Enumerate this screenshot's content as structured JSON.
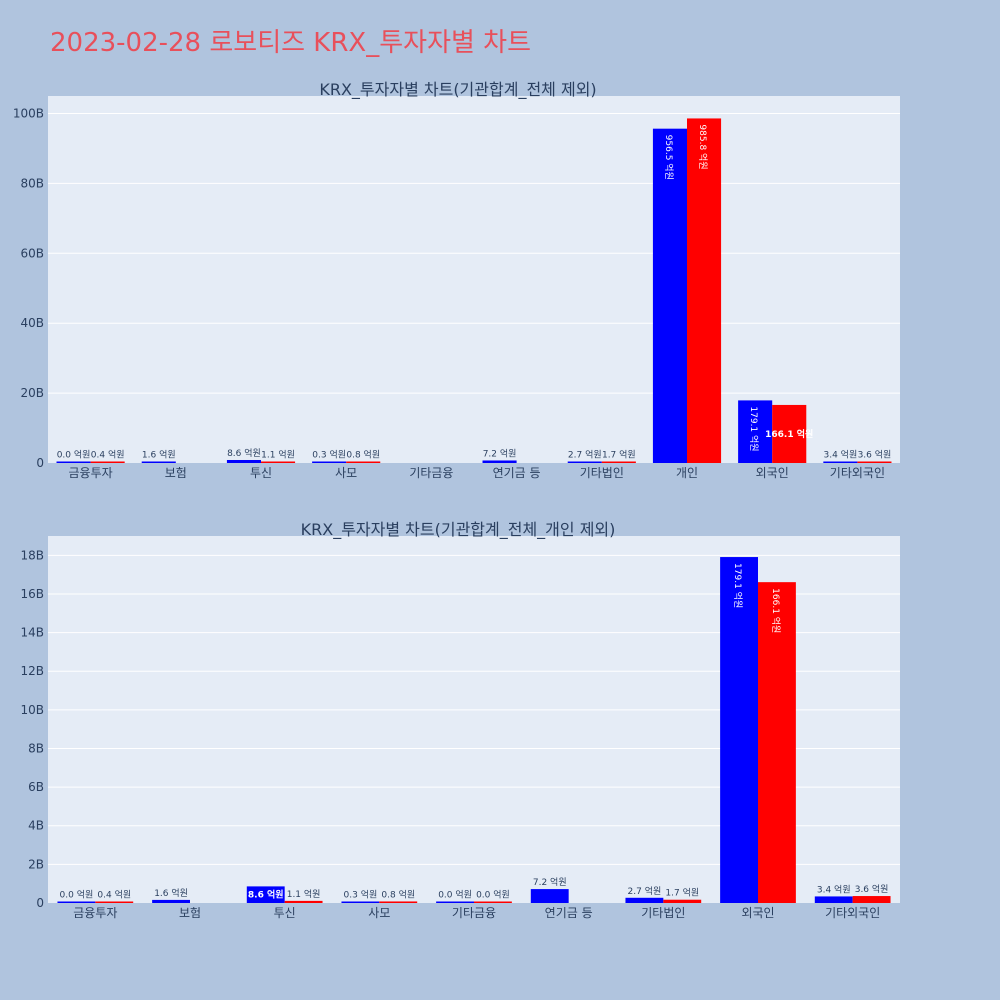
{
  "title": "2023-02-28 로보티즈 KRX_투자자별 차트",
  "colors": {
    "background": "#b0c4de",
    "plot_bg": "#e5ecf6",
    "series_a": "#0000ff",
    "series_b": "#ff0000",
    "title": "#e8505b",
    "text": "#2a3f5f"
  },
  "chart_data": [
    {
      "type": "bar",
      "title": "KRX_투자자별 차트(기관합계_전체 제외)",
      "categories": [
        "금융투자",
        "보험",
        "투신",
        "사모",
        "기타금융",
        "연기금 등",
        "기타법인",
        "개인",
        "외국인",
        "기타외국인"
      ],
      "ylim": [
        0,
        105
      ],
      "y_unit_scale": "B",
      "yticks": [
        "0",
        "20B",
        "40B",
        "60B",
        "80B",
        "100B"
      ],
      "ytick_values": [
        0,
        20,
        40,
        60,
        80,
        100
      ],
      "grid": true,
      "series": [
        {
          "values": [
            0.0,
            0.16,
            0.86,
            0.03,
            null,
            0.72,
            0.27,
            95.65,
            17.91,
            0.34
          ],
          "labels": [
            "0.0 억원",
            "1.6 억원",
            "8.6 억원",
            "0.3 억원",
            "",
            "7.2 억원",
            "2.7 억원",
            "956.5 억원",
            "179.1 억원",
            "3.4 억원"
          ]
        },
        {
          "values": [
            0.04,
            null,
            0.11,
            0.08,
            null,
            null,
            0.17,
            98.58,
            16.61,
            0.36
          ],
          "labels": [
            "0.4 억원",
            "",
            "1.1 억원",
            "0.8 억원",
            "",
            "",
            "1.7 억원",
            "985.8 억원",
            "166.1 억원",
            "3.6 억원"
          ]
        }
      ]
    },
    {
      "type": "bar",
      "title": "KRX_투자자별 차트(기관합계_전체_개인 제외)",
      "categories": [
        "금융투자",
        "보험",
        "투신",
        "사모",
        "기타금융",
        "연기금 등",
        "기타법인",
        "외국인",
        "기타외국인"
      ],
      "ylim": [
        0,
        19
      ],
      "y_unit_scale": "B",
      "yticks": [
        "0",
        "2B",
        "4B",
        "6B",
        "8B",
        "10B",
        "12B",
        "14B",
        "16B",
        "18B"
      ],
      "ytick_values": [
        0,
        2,
        4,
        6,
        8,
        10,
        12,
        14,
        16,
        18
      ],
      "grid": true,
      "series": [
        {
          "values": [
            0.0,
            0.16,
            0.86,
            0.03,
            0.0,
            0.72,
            0.27,
            17.91,
            0.34
          ],
          "labels": [
            "0.0 억원",
            "1.6 억원",
            "8.6 억원",
            "0.3 억원",
            "0.0 억원",
            "7.2 억원",
            "2.7 억원",
            "179.1 억원",
            "3.4 억원"
          ]
        },
        {
          "values": [
            0.04,
            null,
            0.11,
            0.08,
            0.0,
            null,
            0.17,
            16.61,
            0.36
          ],
          "labels": [
            "0.4 억원",
            "",
            "1.1 억원",
            "0.8 억원",
            "0.0 억원",
            "",
            "1.7 억원",
            "166.1 억원",
            "3.6 억원"
          ]
        }
      ]
    }
  ]
}
